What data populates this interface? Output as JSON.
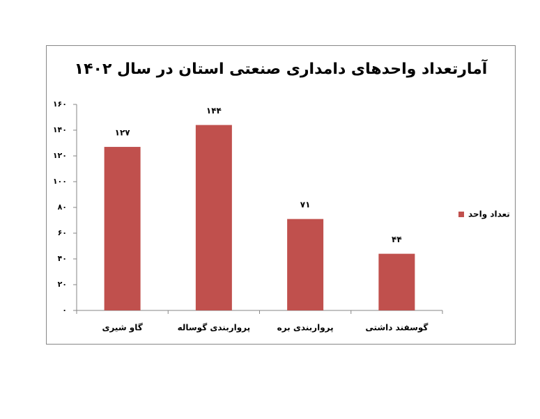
{
  "chart_data": {
    "type": "bar",
    "title": "آمارتعداد واحدهای دامداری صنعتی استان در سال ۱۴۰۲",
    "categories": [
      "گاو شیری",
      "پرواربندی گوساله",
      "پرواربندی بره",
      "گوسفند داشتی"
    ],
    "series": [
      {
        "name": "تعداد واحد",
        "color": "#c0504d",
        "values": [
          127,
          144,
          71,
          44
        ],
        "value_labels": [
          "۱۲۷",
          "۱۴۴",
          "۷۱",
          "۴۴"
        ]
      }
    ],
    "ylim": [
      0,
      160
    ],
    "yticks": [
      {
        "value": 0,
        "label": "۰"
      },
      {
        "value": 20,
        "label": "۲۰"
      },
      {
        "value": 40,
        "label": "۴۰"
      },
      {
        "value": 60,
        "label": "۶۰"
      },
      {
        "value": 80,
        "label": "۸۰"
      },
      {
        "value": 100,
        "label": "۱۰۰"
      },
      {
        "value": 120,
        "label": "۱۲۰"
      },
      {
        "value": 140,
        "label": "۱۴۰"
      },
      {
        "value": 160,
        "label": "۱۶۰"
      }
    ],
    "legend": "right"
  }
}
